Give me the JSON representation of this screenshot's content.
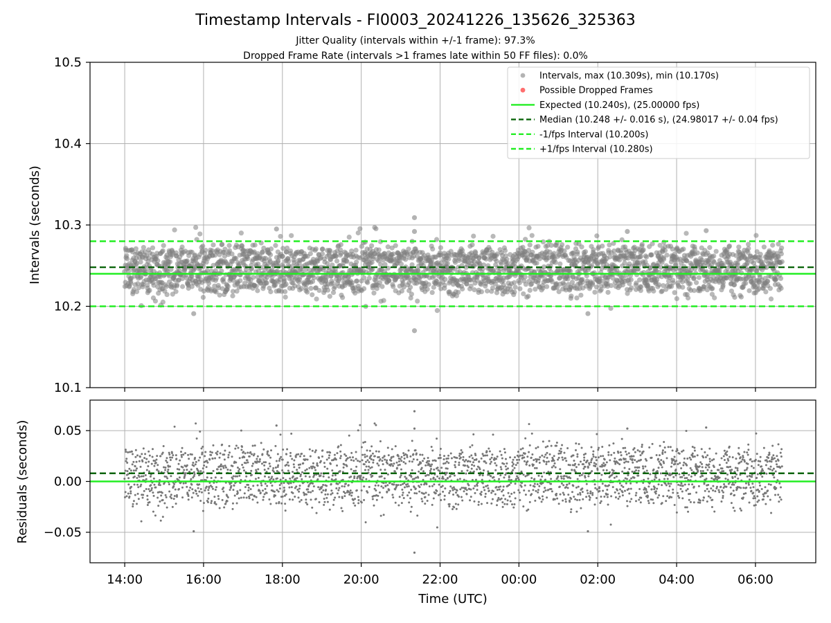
{
  "chart_data": [
    {
      "type": "scatter",
      "panel": "main",
      "title": "Timestamp Intervals - FI0003_20241226_135626_325363",
      "subtitles": [
        "Jitter Quality (intervals within +/-1 frame): 97.3%",
        "Dropped Frame Rate (intervals >1 frames late within 50 FF files): 0.0%"
      ],
      "ylabel": "Intervals (seconds)",
      "xlabel": "",
      "ylim": [
        10.1,
        10.5
      ],
      "yticks": [
        "10.1",
        "10.2",
        "10.3",
        "10.4",
        "10.5"
      ],
      "xlim_hours": [
        13.12,
        31.53
      ],
      "xticks": [
        {
          "hour": 14,
          "label": "14:00"
        },
        {
          "hour": 16,
          "label": "16:00"
        },
        {
          "hour": 18,
          "label": "18:00"
        },
        {
          "hour": 20,
          "label": "20:00"
        },
        {
          "hour": 22,
          "label": "22:00"
        },
        {
          "hour": 24,
          "label": "00:00"
        },
        {
          "hour": 26,
          "label": "02:00"
        },
        {
          "hour": 28,
          "label": "04:00"
        },
        {
          "hour": 30,
          "label": "06:00"
        }
      ],
      "grid": true,
      "legend_position": "top-right",
      "x_range_hours": [
        14.0,
        30.67
      ],
      "series": [
        {
          "name": "Intervals, max (10.309s), min (10.170s)",
          "kind": "scatter",
          "color": "#808080",
          "center": 10.248,
          "spread": 0.018,
          "max": 10.309,
          "min": 10.17
        },
        {
          "name": "Possible Dropped Frames",
          "kind": "scatter",
          "color": "#ff5555",
          "count": 0
        },
        {
          "name": "Expected (10.240s), (25.00000 fps)",
          "kind": "line",
          "style": "solid",
          "color": "#22ee22",
          "value": 10.24
        },
        {
          "name": "Median (10.248 +/- 0.016 s), (24.98017 +/- 0.04 fps)",
          "kind": "line",
          "style": "dashed",
          "color": "#0a640a",
          "value": 10.248
        },
        {
          "name": "-1/fps Interval (10.200s)",
          "kind": "line",
          "style": "dashed",
          "color": "#22ee22",
          "value": 10.2
        },
        {
          "name": "+1/fps Interval (10.280s)",
          "kind": "line",
          "style": "dashed",
          "color": "#22ee22",
          "value": 10.28
        }
      ],
      "notable_points": [
        {
          "hour": 21.35,
          "value": 10.309
        },
        {
          "hour": 21.35,
          "value": 10.292
        },
        {
          "hour": 21.35,
          "value": 10.17
        },
        {
          "hour": 17.85,
          "value": 10.295
        },
        {
          "hour": 15.75,
          "value": 10.191
        },
        {
          "hour": 25.75,
          "value": 10.191
        },
        {
          "hour": 26.75,
          "value": 10.292
        },
        {
          "hour": 28.75,
          "value": 10.293
        }
      ]
    },
    {
      "type": "scatter",
      "panel": "residuals",
      "ylabel": "Residuals (seconds)",
      "xlabel": "Time (UTC)",
      "ylim": [
        -0.08,
        0.08
      ],
      "yticks": [
        {
          "value": -0.05,
          "label": "−0.05"
        },
        {
          "value": 0.0,
          "label": "0.00"
        },
        {
          "value": 0.05,
          "label": "0.05"
        }
      ],
      "grid": true,
      "series": [
        {
          "name": "Residuals",
          "kind": "scatter",
          "color": "#777777",
          "center": 0.008,
          "spread": 0.018
        },
        {
          "name": "Expected",
          "kind": "line",
          "style": "solid",
          "color": "#22ee22",
          "value": 0.0
        },
        {
          "name": "Median",
          "kind": "line",
          "style": "dashed",
          "color": "#0a640a",
          "value": 0.008
        }
      ]
    }
  ]
}
